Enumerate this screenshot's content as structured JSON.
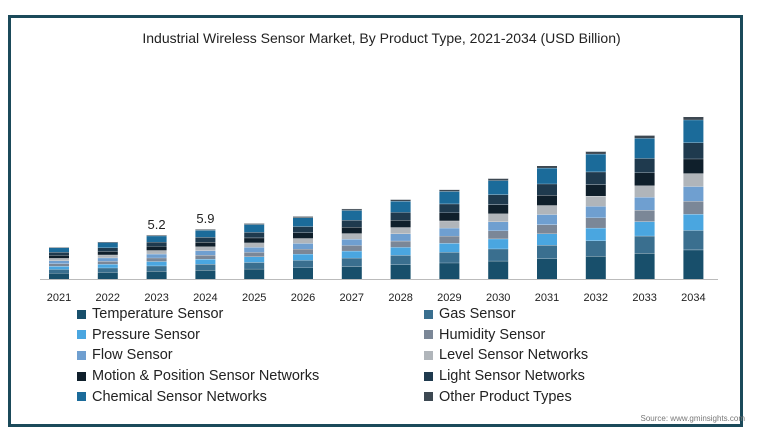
{
  "chart_data": {
    "type": "bar",
    "stacked": true,
    "title": "Industrial Wireless Sensor Market, By Product Type, 2021-2034 (USD Billion)",
    "xlabel": "",
    "ylabel": "",
    "categories": [
      "2021",
      "2022",
      "2023",
      "2024",
      "2025",
      "2026",
      "2027",
      "2028",
      "2029",
      "2030",
      "2031",
      "2032",
      "2033",
      "2034"
    ],
    "totals": [
      3.8,
      4.4,
      5.2,
      5.9,
      6.6,
      7.4,
      8.3,
      9.4,
      10.6,
      11.9,
      13.4,
      15.1,
      17.0,
      19.2
    ],
    "ylim": [
      0,
      20
    ],
    "grid": false,
    "series": [
      {
        "name": "Temperature Sensor",
        "color": "#184f6b",
        "values": [
          0.68,
          0.79,
          0.94,
          1.06,
          1.19,
          1.33,
          1.49,
          1.69,
          1.91,
          2.14,
          2.41,
          2.72,
          3.06,
          3.46
        ]
      },
      {
        "name": "Gas Sensor",
        "color": "#3a6f8f",
        "values": [
          0.46,
          0.53,
          0.62,
          0.71,
          0.79,
          0.89,
          1.0,
          1.13,
          1.27,
          1.43,
          1.61,
          1.81,
          2.04,
          2.3
        ]
      },
      {
        "name": "Pressure Sensor",
        "color": "#4aa6e0",
        "values": [
          0.38,
          0.44,
          0.52,
          0.59,
          0.66,
          0.74,
          0.83,
          0.94,
          1.06,
          1.19,
          1.34,
          1.51,
          1.7,
          1.92
        ]
      },
      {
        "name": "Humidity Sensor",
        "color": "#7b8797",
        "values": [
          0.3,
          0.35,
          0.42,
          0.47,
          0.53,
          0.59,
          0.66,
          0.75,
          0.85,
          0.95,
          1.07,
          1.21,
          1.36,
          1.54
        ]
      },
      {
        "name": "Flow Sensor",
        "color": "#6f9fd0",
        "values": [
          0.34,
          0.4,
          0.47,
          0.53,
          0.59,
          0.67,
          0.75,
          0.85,
          0.95,
          1.07,
          1.21,
          1.36,
          1.53,
          1.73
        ]
      },
      {
        "name": "Level Sensor Networks",
        "color": "#b0b5ba",
        "values": [
          0.3,
          0.35,
          0.42,
          0.47,
          0.53,
          0.59,
          0.66,
          0.75,
          0.85,
          0.95,
          1.07,
          1.21,
          1.36,
          1.54
        ]
      },
      {
        "name": "Motion & Position Sensor Networks",
        "color": "#0f1f2b",
        "values": [
          0.34,
          0.4,
          0.47,
          0.53,
          0.59,
          0.67,
          0.75,
          0.85,
          0.95,
          1.07,
          1.21,
          1.36,
          1.53,
          1.73
        ]
      },
      {
        "name": "Light Sensor Networks",
        "color": "#1f3a4e",
        "values": [
          0.38,
          0.44,
          0.52,
          0.59,
          0.66,
          0.74,
          0.83,
          0.94,
          1.06,
          1.19,
          1.34,
          1.51,
          1.7,
          1.92
        ]
      },
      {
        "name": "Chemical Sensor Networks",
        "color": "#1b6b9a",
        "values": [
          0.53,
          0.62,
          0.73,
          0.83,
          0.92,
          1.04,
          1.16,
          1.32,
          1.48,
          1.67,
          1.88,
          2.11,
          2.38,
          2.69
        ]
      },
      {
        "name": "Other Product Types",
        "color": "#3d4852",
        "values": [
          0.08,
          0.09,
          0.1,
          0.12,
          0.13,
          0.15,
          0.17,
          0.19,
          0.21,
          0.24,
          0.27,
          0.3,
          0.34,
          0.38
        ]
      }
    ],
    "data_labels": [
      {
        "category": "2023",
        "text": "5.2"
      },
      {
        "category": "2024",
        "text": "5.9"
      }
    ],
    "legend": {
      "placement": "bottom"
    }
  },
  "source": "Source: www.gminsights.com"
}
